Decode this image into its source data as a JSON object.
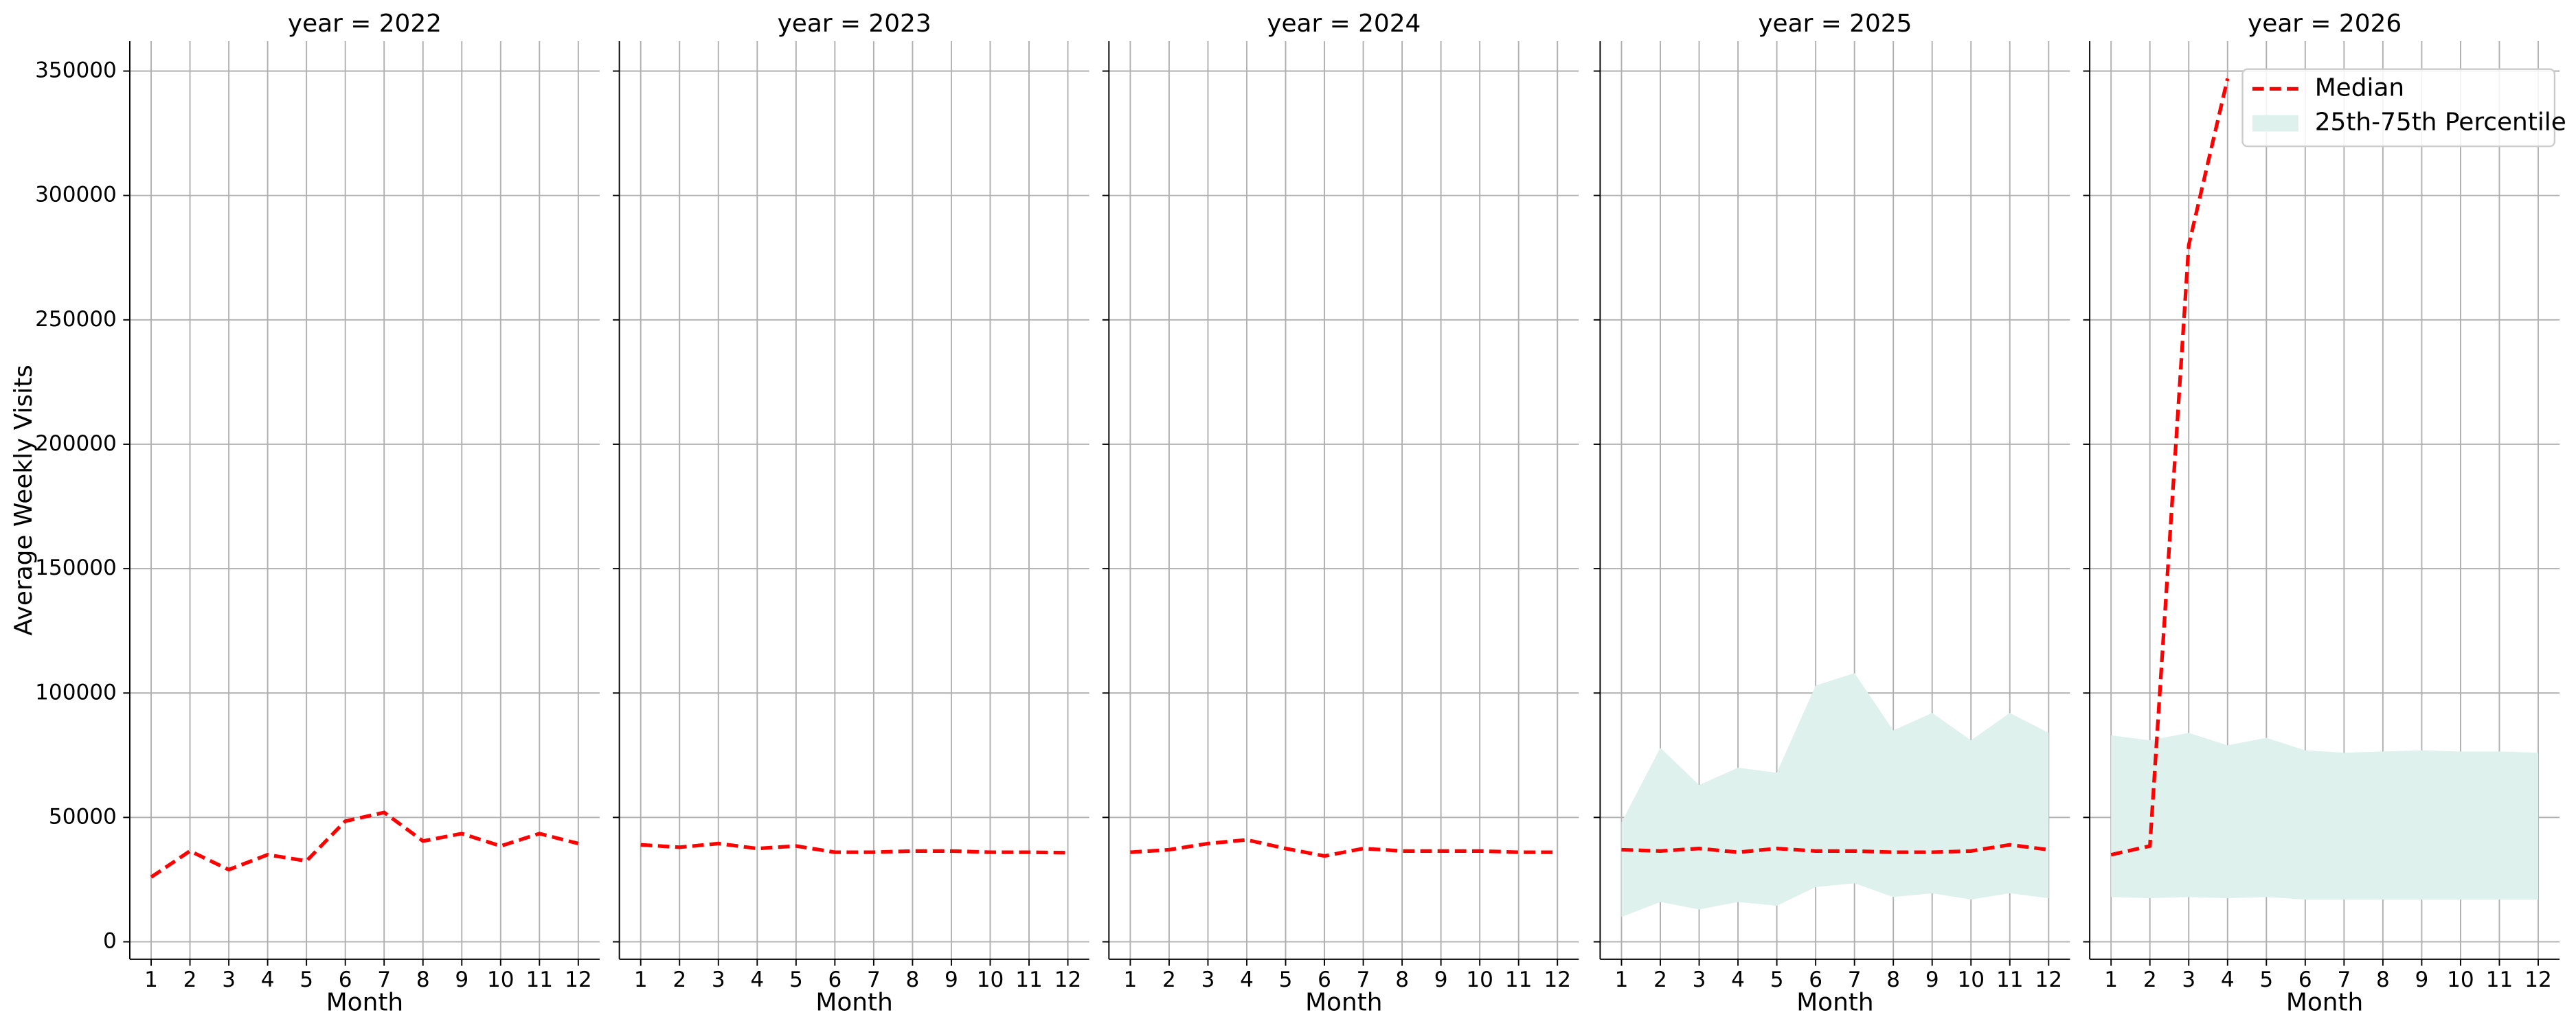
{
  "chart_data": [
    {
      "type": "line",
      "title": "year = 2022",
      "x_label": "Month",
      "y_label": "Average Weekly Visits",
      "x": [
        1,
        2,
        3,
        4,
        5,
        6,
        7,
        8,
        9,
        10,
        11,
        12
      ],
      "xlim": [
        0.45,
        12.55
      ],
      "xticks": [
        1,
        2,
        3,
        4,
        5,
        6,
        7,
        8,
        9,
        10,
        11,
        12
      ],
      "ylim": [
        -7000,
        362000
      ],
      "yticks": [
        0,
        50000,
        100000,
        150000,
        200000,
        250000,
        300000,
        350000
      ],
      "grid": true,
      "series": [
        {
          "color": "#ff0000",
          "values": [
            26000,
            36500,
            29000,
            35000,
            32500,
            48500,
            52000,
            40500,
            43500,
            38500,
            43500,
            39500
          ]
        }
      ]
    },
    {
      "type": "line",
      "title": "year = 2023",
      "x_label": "Month",
      "x": [
        1,
        2,
        3,
        4,
        5,
        6,
        7,
        8,
        9,
        10,
        11,
        12
      ],
      "xlim": [
        0.45,
        12.55
      ],
      "xticks": [
        1,
        2,
        3,
        4,
        5,
        6,
        7,
        8,
        9,
        10,
        11,
        12
      ],
      "grid": true,
      "series": [
        {
          "color": "#ff0000",
          "values": [
            39000,
            38000,
            39500,
            37500,
            38500,
            36000,
            36000,
            36500,
            36500,
            36000,
            36000,
            35800
          ]
        }
      ]
    },
    {
      "type": "line",
      "title": "year = 2024",
      "x_label": "Month",
      "x": [
        1,
        2,
        3,
        4,
        5,
        6,
        7,
        8,
        9,
        10,
        11,
        12
      ],
      "xlim": [
        0.45,
        12.55
      ],
      "xticks": [
        1,
        2,
        3,
        4,
        5,
        6,
        7,
        8,
        9,
        10,
        11,
        12
      ],
      "grid": true,
      "series": [
        {
          "color": "#ff0000",
          "values": [
            36000,
            37000,
            39500,
            41000,
            37500,
            34500,
            37500,
            36500,
            36500,
            36500,
            36000,
            36000
          ]
        }
      ]
    },
    {
      "type": "line",
      "title": "year = 2025",
      "x_label": "Month",
      "x": [
        1,
        2,
        3,
        4,
        5,
        6,
        7,
        8,
        9,
        10,
        11,
        12
      ],
      "xlim": [
        0.45,
        12.55
      ],
      "xticks": [
        1,
        2,
        3,
        4,
        5,
        6,
        7,
        8,
        9,
        10,
        11,
        12
      ],
      "grid": true,
      "series": [
        {
          "color": "#ff0000",
          "values": [
            37000,
            36500,
            37500,
            36000,
            37500,
            36500,
            36500,
            36000,
            36000,
            36500,
            39000,
            37000
          ]
        }
      ],
      "band": {
        "color": "#dff1ec",
        "lower": [
          10000,
          16000,
          13000,
          16000,
          14500,
          22000,
          23500,
          18000,
          19500,
          17000,
          19500,
          17500
        ],
        "upper": [
          48000,
          78000,
          63000,
          70000,
          68000,
          103000,
          108000,
          85000,
          92000,
          81000,
          92000,
          84000
        ]
      }
    },
    {
      "type": "line",
      "title": "year = 2026",
      "x_label": "Month",
      "x": [
        1,
        2,
        3,
        4,
        5,
        6,
        7,
        8,
        9,
        10,
        11,
        12
      ],
      "xlim": [
        0.45,
        12.55
      ],
      "xticks": [
        1,
        2,
        3,
        4,
        5,
        6,
        7,
        8,
        9,
        10,
        11,
        12
      ],
      "grid": true,
      "series": [
        {
          "name": "Median",
          "color": "#ff0000",
          "values": [
            35000,
            38500,
            280000,
            347000,
            null,
            null,
            null,
            null,
            null,
            null,
            null,
            null
          ]
        }
      ],
      "band": {
        "name": "25th-75th Percentile",
        "color": "#dff1ec",
        "lower": [
          18000,
          17500,
          18000,
          17500,
          18000,
          17000,
          17000,
          17000,
          17000,
          17000,
          17000,
          17000
        ],
        "upper": [
          83000,
          81000,
          84000,
          79000,
          82000,
          77000,
          76000,
          76500,
          77000,
          76500,
          76500,
          76000
        ]
      },
      "legend": "upper right"
    }
  ]
}
